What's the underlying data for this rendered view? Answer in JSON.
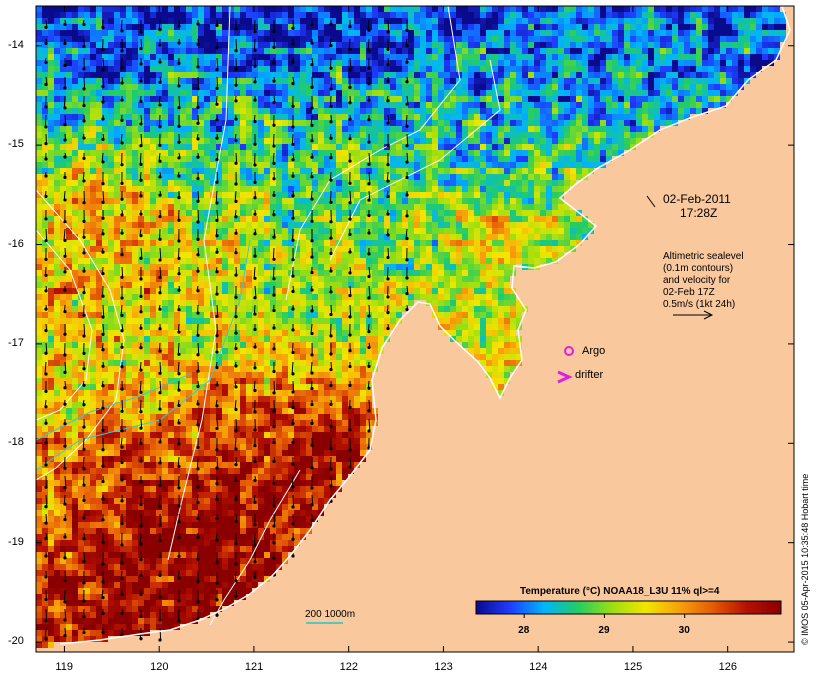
{
  "map": {
    "date": "02-Feb-2011",
    "time": "17:28Z",
    "lon_ticks": [
      "119",
      "120",
      "121",
      "122",
      "123",
      "124",
      "125",
      "126"
    ],
    "lat_ticks": [
      "-14",
      "-15",
      "-16",
      "-17",
      "-18",
      "-19",
      "-20"
    ],
    "lon_range": [
      118.7,
      126.7
    ],
    "lat_range": [
      -13.6,
      -20.1
    ],
    "land_color": "#f9c89c",
    "colormap": [
      "#0a0a8c",
      "#1e3cff",
      "#00b4ff",
      "#22cc66",
      "#9ade12",
      "#f2e600",
      "#f7a10a",
      "#e45a05",
      "#b31000",
      "#8a0000"
    ]
  },
  "overlay_info": {
    "lines": [
      "Altimetric sealevel",
      "(0.1m contours)",
      "and velocity for",
      "02-Feb 17Z",
      "0.5m/s (1kt 24h)"
    ]
  },
  "legend": {
    "argo_label": "Argo",
    "drifter_label": "drifter",
    "argo_color": "#e020e0",
    "drifter_color": "#e020e0"
  },
  "depth_legend": {
    "label": "200  1000m"
  },
  "colorbar": {
    "title": "Temperature (°C) NOAA18_L3U 11% ql>=4",
    "ticks": [
      "28",
      "29",
      "30"
    ],
    "range": [
      27.4,
      31.2
    ]
  },
  "copyright": "© IMOS 05-Apr-2015 10:35:48 Hobart time"
}
